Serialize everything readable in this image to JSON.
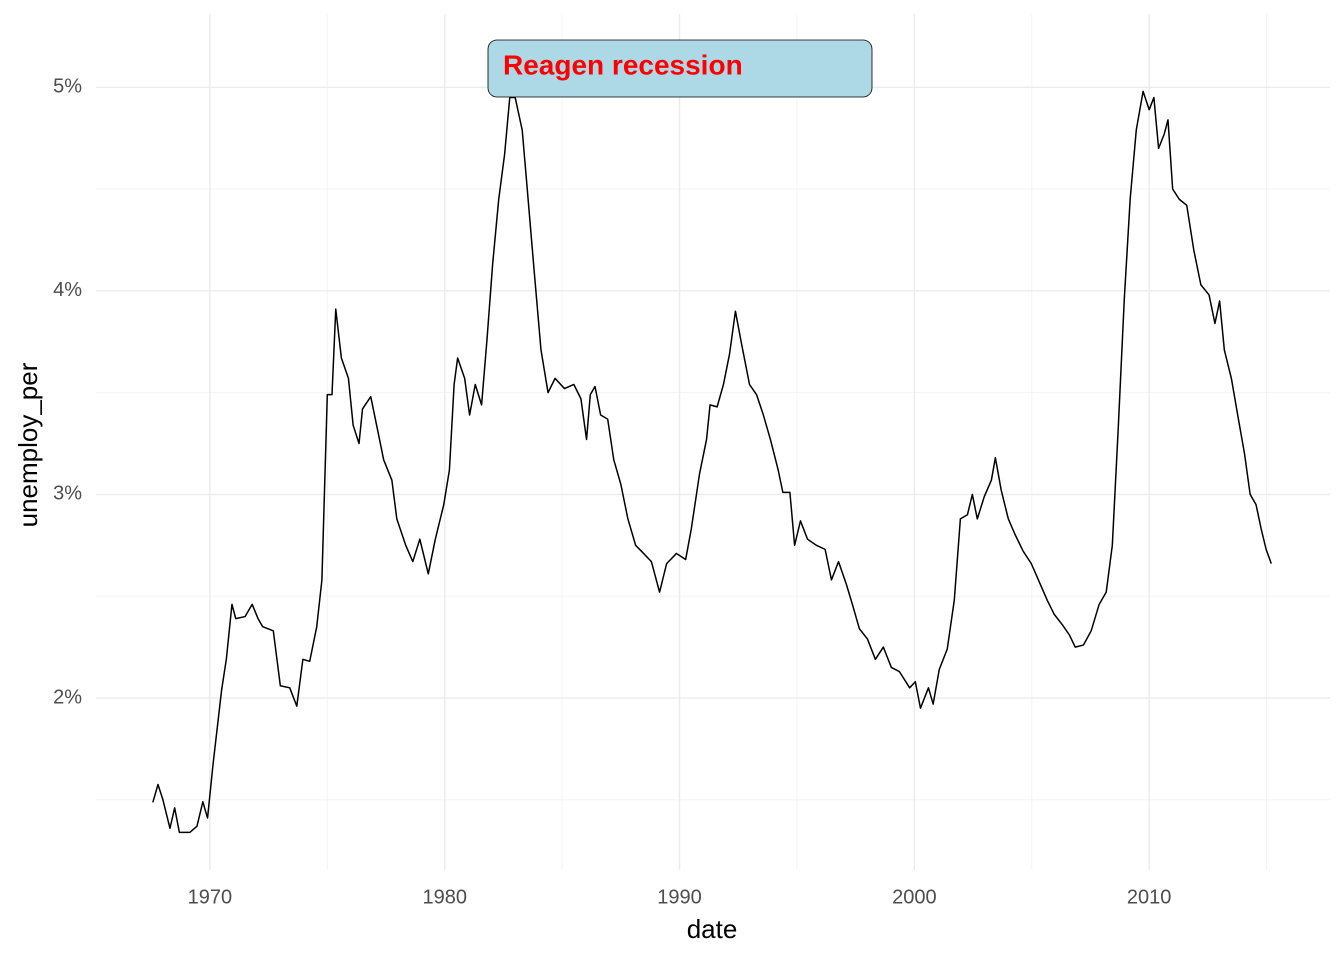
{
  "chart_data": {
    "type": "line",
    "x_label": "date",
    "y_label": "unemploy_per",
    "annotation": {
      "text": "Reagen recession",
      "fill": "#add8e6",
      "color": "#ff0000"
    },
    "xlim": [
      1965.15,
      2017.7
    ],
    "ylim": [
      1.155,
      5.36
    ],
    "xticks": [
      1970,
      1980,
      1990,
      2000,
      2010
    ],
    "yticks": [
      {
        "value": 2,
        "label": "2%"
      },
      {
        "value": 3,
        "label": "3%"
      },
      {
        "value": 4,
        "label": "4%"
      },
      {
        "value": 5,
        "label": "5%"
      }
    ],
    "x_minor_grid": [
      1975,
      1985,
      1995,
      2005,
      2015
    ],
    "y_minor_grid": [
      1.5,
      2.5,
      3.5,
      4.5
    ],
    "grid": true,
    "x": [
      1967.57,
      1967.79,
      1968.0,
      1968.3,
      1968.5,
      1968.7,
      1969.15,
      1969.45,
      1969.7,
      1969.9,
      1970.13,
      1970.5,
      1970.7,
      1970.94,
      1971.1,
      1971.5,
      1971.8,
      1972.05,
      1972.25,
      1972.7,
      1973.0,
      1973.4,
      1973.7,
      1973.96,
      1974.25,
      1974.55,
      1974.77,
      1975.0,
      1975.2,
      1975.36,
      1975.6,
      1975.9,
      1976.1,
      1976.35,
      1976.5,
      1976.85,
      1977.1,
      1977.4,
      1977.75,
      1977.96,
      1978.34,
      1978.64,
      1978.94,
      1979.3,
      1979.6,
      1979.96,
      1980.2,
      1980.4,
      1980.55,
      1980.85,
      1981.06,
      1981.3,
      1981.57,
      1981.8,
      1982.04,
      1982.3,
      1982.55,
      1982.77,
      1983.0,
      1983.3,
      1983.5,
      1983.8,
      1984.1,
      1984.4,
      1984.7,
      1985.1,
      1985.5,
      1985.8,
      1986.04,
      1986.2,
      1986.4,
      1986.64,
      1986.94,
      1987.2,
      1987.5,
      1987.8,
      1988.13,
      1988.47,
      1988.8,
      1989.15,
      1989.45,
      1989.87,
      1990.26,
      1990.5,
      1990.85,
      1991.15,
      1991.3,
      1991.6,
      1991.87,
      1992.13,
      1992.38,
      1992.64,
      1992.98,
      1993.28,
      1993.57,
      1993.87,
      1994.2,
      1994.4,
      1994.7,
      1994.9,
      1995.15,
      1995.45,
      1995.83,
      1996.2,
      1996.47,
      1996.77,
      1997.1,
      1997.36,
      1997.66,
      1998.0,
      1998.34,
      1998.68,
      1999.02,
      1999.36,
      1999.8,
      2000.04,
      2000.26,
      2000.6,
      2000.8,
      2001.06,
      2001.4,
      2001.7,
      2001.96,
      2002.26,
      2002.47,
      2002.68,
      2002.98,
      2003.28,
      2003.45,
      2003.7,
      2004.0,
      2004.3,
      2004.64,
      2004.98,
      2005.32,
      2005.66,
      2005.96,
      2006.3,
      2006.6,
      2006.85,
      2007.2,
      2007.53,
      2007.87,
      2008.17,
      2008.43,
      2008.68,
      2008.94,
      2009.19,
      2009.45,
      2009.74,
      2010.0,
      2010.2,
      2010.4,
      2010.64,
      2010.8,
      2011.0,
      2011.28,
      2011.6,
      2011.9,
      2012.2,
      2012.55,
      2012.8,
      2013.0,
      2013.2,
      2013.5,
      2013.8,
      2014.06,
      2014.3,
      2014.55,
      2014.77,
      2014.98,
      2015.2
    ],
    "series": [
      {
        "color": "#000000",
        "values": [
          1.487,
          1.575,
          1.5,
          1.36,
          1.46,
          1.34,
          1.34,
          1.37,
          1.49,
          1.41,
          1.67,
          2.04,
          2.19,
          2.46,
          2.39,
          2.4,
          2.46,
          2.39,
          2.35,
          2.33,
          2.06,
          2.05,
          1.96,
          2.19,
          2.18,
          2.35,
          2.58,
          3.49,
          3.49,
          3.91,
          3.67,
          3.57,
          3.34,
          3.25,
          3.42,
          3.48,
          3.34,
          3.17,
          3.07,
          2.88,
          2.75,
          2.67,
          2.78,
          2.61,
          2.78,
          2.95,
          3.12,
          3.54,
          3.67,
          3.57,
          3.39,
          3.54,
          3.44,
          3.76,
          4.13,
          4.45,
          4.67,
          4.95,
          4.95,
          4.79,
          4.52,
          4.11,
          3.71,
          3.5,
          3.57,
          3.52,
          3.54,
          3.47,
          3.27,
          3.49,
          3.53,
          3.39,
          3.37,
          3.17,
          3.05,
          2.88,
          2.75,
          2.71,
          2.67,
          2.52,
          2.66,
          2.71,
          2.68,
          2.83,
          3.1,
          3.27,
          3.44,
          3.43,
          3.54,
          3.69,
          3.9,
          3.74,
          3.54,
          3.49,
          3.39,
          3.27,
          3.12,
          3.01,
          3.01,
          2.75,
          2.87,
          2.78,
          2.75,
          2.73,
          2.58,
          2.67,
          2.56,
          2.46,
          2.34,
          2.29,
          2.19,
          2.25,
          2.15,
          2.13,
          2.05,
          2.08,
          1.95,
          2.05,
          1.97,
          2.14,
          2.24,
          2.48,
          2.88,
          2.9,
          3.0,
          2.88,
          2.99,
          3.07,
          3.18,
          3.02,
          2.88,
          2.8,
          2.72,
          2.66,
          2.57,
          2.48,
          2.41,
          2.36,
          2.31,
          2.25,
          2.26,
          2.33,
          2.46,
          2.52,
          2.75,
          3.32,
          3.96,
          4.45,
          4.79,
          4.98,
          4.89,
          4.95,
          4.7,
          4.77,
          4.84,
          4.5,
          4.45,
          4.42,
          4.2,
          4.03,
          3.98,
          3.84,
          3.95,
          3.71,
          3.57,
          3.37,
          3.2,
          3.0,
          2.95,
          2.83,
          2.73,
          2.66
        ]
      }
    ]
  }
}
